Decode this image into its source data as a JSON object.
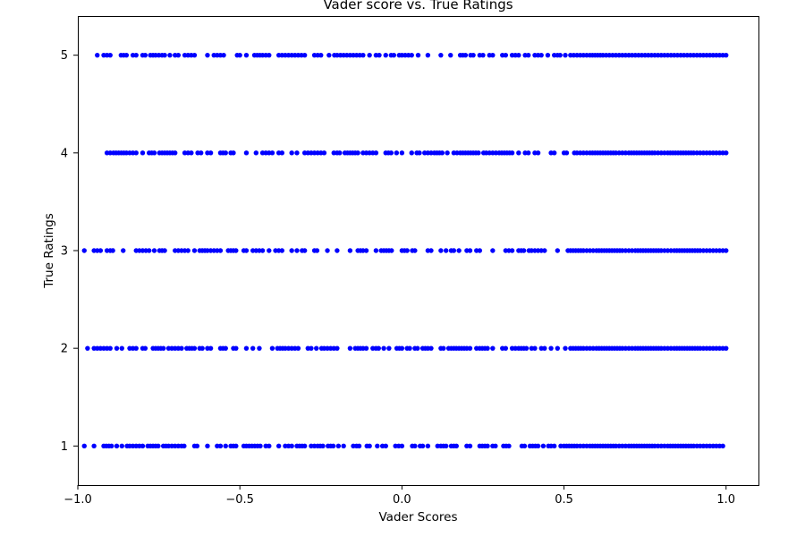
{
  "chart_data": {
    "type": "scatter",
    "title": "Vader score vs. True Ratings",
    "xlabel": "Vader Scores",
    "ylabel": "True Ratings",
    "xlim": [
      -1.0,
      1.1
    ],
    "ylim": [
      0.6,
      5.4
    ],
    "xticks": [
      -1.0,
      -0.5,
      0.0,
      0.5,
      1.0
    ],
    "xtick_labels": [
      "−1.0",
      "−0.5",
      "0.0",
      "0.5",
      "1.0"
    ],
    "yticks": [
      1,
      2,
      3,
      4,
      5
    ],
    "ytick_labels": [
      "1",
      "2",
      "3",
      "4",
      "5"
    ],
    "grid": false,
    "marker_color": "#0000ff",
    "series": [
      {
        "rating": 5,
        "x_range": [
          -0.94,
          1.0
        ],
        "x": [
          -0.94,
          -0.92,
          -0.9,
          -0.85,
          -0.83,
          -0.8,
          -0.76,
          -0.74,
          -0.7,
          -0.66,
          -0.64,
          -0.6,
          -0.57,
          -0.55,
          -0.5,
          -0.48,
          -0.43,
          -0.41,
          -0.38,
          -0.35,
          -0.31,
          -0.27,
          -0.25,
          -0.2,
          -0.17,
          -0.15,
          -0.12,
          -0.08,
          -0.05,
          0.0,
          0.02,
          0.05,
          0.08,
          0.12,
          0.15,
          0.18,
          0.22,
          0.25,
          0.28,
          0.32,
          0.35,
          0.38,
          0.42,
          0.45,
          0.48,
          0.52,
          0.55,
          0.58,
          0.62,
          0.65,
          0.68,
          0.72,
          0.75,
          0.78,
          0.82,
          0.85,
          0.88,
          0.9,
          0.92,
          0.94,
          0.96,
          0.98,
          1.0
        ]
      },
      {
        "rating": 4,
        "x_range": [
          -0.91,
          1.0
        ],
        "x": [
          -0.91,
          -0.89,
          -0.85,
          -0.82,
          -0.78,
          -0.74,
          -0.7,
          -0.66,
          -0.63,
          -0.6,
          -0.56,
          -0.52,
          -0.48,
          -0.45,
          -0.42,
          -0.38,
          -0.34,
          -0.3,
          -0.27,
          -0.24,
          -0.2,
          -0.16,
          -0.12,
          -0.08,
          -0.05,
          0.0,
          0.03,
          0.07,
          0.1,
          0.14,
          0.18,
          0.22,
          0.26,
          0.3,
          0.34,
          0.38,
          0.42,
          0.46,
          0.5,
          0.54,
          0.58,
          0.62,
          0.66,
          0.7,
          0.74,
          0.78,
          0.82,
          0.86,
          0.9,
          0.93,
          0.96,
          0.98,
          1.0
        ]
      },
      {
        "rating": 3,
        "x_range": [
          -0.98,
          1.0
        ],
        "x": [
          -0.98,
          -0.95,
          -0.93,
          -0.9,
          -0.86,
          -0.82,
          -0.78,
          -0.74,
          -0.7,
          -0.67,
          -0.64,
          -0.6,
          -0.56,
          -0.52,
          -0.48,
          -0.44,
          -0.41,
          -0.38,
          -0.34,
          -0.3,
          -0.27,
          -0.23,
          -0.2,
          -0.16,
          -0.12,
          -0.08,
          -0.04,
          0.0,
          0.04,
          0.08,
          0.12,
          0.16,
          0.2,
          0.24,
          0.28,
          0.32,
          0.36,
          0.4,
          0.44,
          0.48,
          0.52,
          0.56,
          0.6,
          0.64,
          0.68,
          0.72,
          0.76,
          0.8,
          0.84,
          0.88,
          0.92,
          0.95,
          0.98,
          1.0
        ]
      },
      {
        "rating": 2,
        "x_range": [
          -0.97,
          1.0
        ],
        "x": [
          -0.97,
          -0.94,
          -0.91,
          -0.88,
          -0.84,
          -0.8,
          -0.76,
          -0.72,
          -0.68,
          -0.64,
          -0.6,
          -0.56,
          -0.52,
          -0.48,
          -0.44,
          -0.4,
          -0.36,
          -0.32,
          -0.28,
          -0.24,
          -0.2,
          -0.16,
          -0.12,
          -0.08,
          -0.04,
          0.0,
          0.04,
          0.08,
          0.12,
          0.16,
          0.2,
          0.24,
          0.28,
          0.32,
          0.36,
          0.4,
          0.44,
          0.48,
          0.52,
          0.56,
          0.6,
          0.64,
          0.68,
          0.72,
          0.76,
          0.8,
          0.84,
          0.88,
          0.92,
          0.95,
          0.98,
          1.0
        ]
      },
      {
        "rating": 1,
        "x_range": [
          -0.98,
          0.99
        ],
        "x": [
          -0.98,
          -0.95,
          -0.92,
          -0.88,
          -0.84,
          -0.8,
          -0.76,
          -0.72,
          -0.68,
          -0.64,
          -0.6,
          -0.56,
          -0.52,
          -0.48,
          -0.42,
          -0.38,
          -0.34,
          -0.3,
          -0.26,
          -0.22,
          -0.18,
          -0.14,
          -0.1,
          -0.06,
          -0.02,
          0.0,
          0.04,
          0.08,
          0.12,
          0.16,
          0.2,
          0.24,
          0.28,
          0.33,
          0.37,
          0.42,
          0.46,
          0.5,
          0.54,
          0.58,
          0.62,
          0.66,
          0.7,
          0.74,
          0.78,
          0.82,
          0.86,
          0.9,
          0.94,
          0.97,
          0.99
        ]
      }
    ]
  }
}
